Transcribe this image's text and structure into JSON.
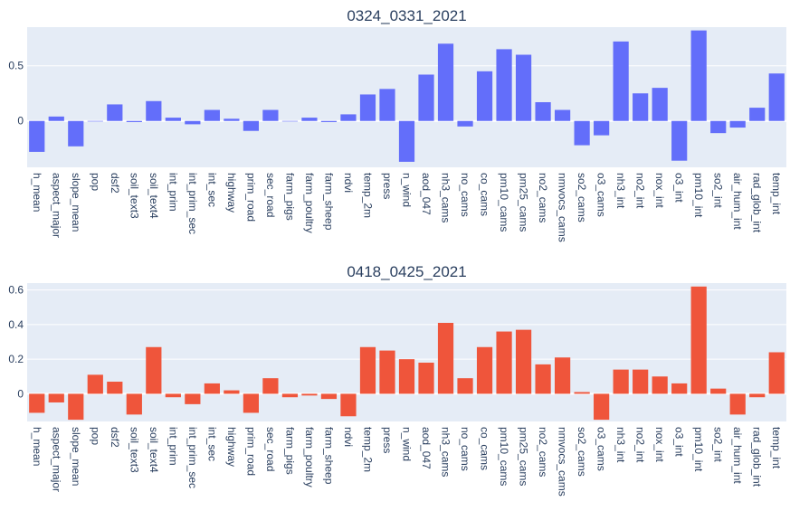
{
  "chart_data": [
    {
      "type": "bar",
      "title": "0324_0331_2021",
      "color": "#636efa",
      "ylim": [
        -0.42,
        0.85
      ],
      "yticks": [
        0,
        0.5
      ],
      "ytick_labels": [
        "0",
        "0.5"
      ],
      "grid": true,
      "categories": [
        "h_mean",
        "aspect_major",
        "slope_mean",
        "pop",
        "dsf2",
        "soil_text3",
        "soil_text4",
        "int_prim",
        "int_prim_sec",
        "int_sec",
        "highway",
        "prim_road",
        "sec_road",
        "farm_pigs",
        "farm_poultry",
        "farm_sheep",
        "ndvi",
        "temp_2m",
        "press",
        "n_wind",
        "aod_047",
        "nh3_cams",
        "no_cams",
        "co_cams",
        "pm10_cams",
        "pm25_cams",
        "no2_cams",
        "nmvocs_cams",
        "so2_cams",
        "o3_cams",
        "nh3_int",
        "no2_int",
        "nox_int",
        "o3_int",
        "pm10_int",
        "so2_int",
        "air_hum_int",
        "rad_glob_int",
        "temp_int"
      ],
      "values": [
        -0.28,
        0.04,
        -0.23,
        0.0,
        0.15,
        -0.01,
        0.18,
        0.03,
        -0.03,
        0.1,
        0.02,
        -0.09,
        0.1,
        0.0,
        0.03,
        -0.01,
        0.06,
        0.24,
        0.29,
        -0.37,
        0.42,
        0.7,
        -0.05,
        0.45,
        0.65,
        0.6,
        0.17,
        0.1,
        -0.22,
        -0.13,
        0.72,
        0.25,
        0.3,
        -0.36,
        0.82,
        -0.11,
        -0.06,
        0.12,
        0.43
      ]
    },
    {
      "type": "bar",
      "title": "0418_0425_2021",
      "color": "#ef553b",
      "ylim": [
        -0.16,
        0.64
      ],
      "yticks": [
        0,
        0.2,
        0.4,
        0.6
      ],
      "ytick_labels": [
        "0",
        "0.2",
        "0.4",
        "0.6"
      ],
      "grid": true,
      "categories": [
        "h_mean",
        "aspect_major",
        "slope_mean",
        "pop",
        "dsf2",
        "soil_text3",
        "soil_text4",
        "int_prim",
        "int_prim_sec",
        "int_sec",
        "highway",
        "prim_road",
        "sec_road",
        "farm_pigs",
        "farm_poultry",
        "farm_sheep",
        "ndvi",
        "temp_2m",
        "press",
        "n_wind",
        "aod_047",
        "nh3_cams",
        "no_cams",
        "co_cams",
        "pm10_cams",
        "pm25_cams",
        "no2_cams",
        "nmvocs_cams",
        "so2_cams",
        "o3_cams",
        "nh3_int",
        "no2_int",
        "nox_int",
        "o3_int",
        "pm10_int",
        "so2_int",
        "air_hum_int",
        "rad_glob_int",
        "temp_int"
      ],
      "values": [
        -0.11,
        -0.05,
        -0.15,
        0.11,
        0.07,
        -0.12,
        0.27,
        -0.02,
        -0.06,
        0.06,
        0.02,
        -0.11,
        0.09,
        -0.02,
        -0.01,
        -0.03,
        -0.13,
        0.27,
        0.25,
        0.2,
        0.18,
        0.41,
        0.09,
        0.27,
        0.36,
        0.37,
        0.17,
        0.21,
        0.01,
        -0.15,
        0.14,
        0.14,
        0.1,
        0.06,
        0.62,
        0.03,
        -0.12,
        -0.02,
        0.24
      ]
    }
  ]
}
